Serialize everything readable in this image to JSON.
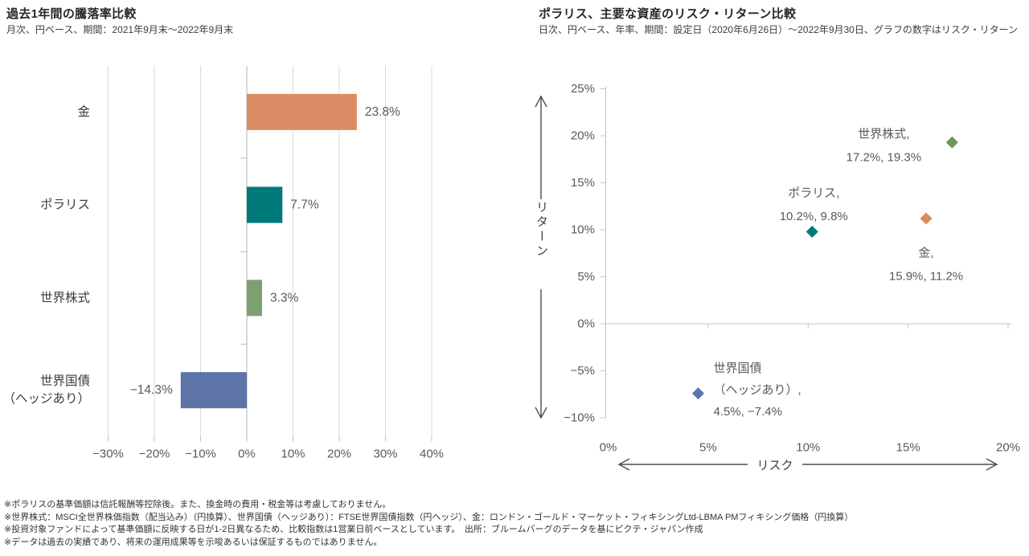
{
  "page": {
    "background": "#ffffff"
  },
  "chart_data": [
    {
      "type": "bar",
      "orientation": "horizontal",
      "title": "過去1年間の騰落率比較",
      "subtitle": "月次、円ベース、期間：2021年9月末～2022年9月末",
      "ids": [
        "gold",
        "polaris",
        "world-equity",
        "world-bond-hedged"
      ],
      "categories": [
        [
          "金"
        ],
        [
          "ポラリス"
        ],
        [
          "世界株式"
        ],
        [
          "世界国債",
          "（ヘッジあり）"
        ]
      ],
      "values": [
        23.8,
        7.7,
        3.3,
        -14.3
      ],
      "value_labels": [
        "23.8%",
        "7.7%",
        "3.3%",
        "−14.3%"
      ],
      "colors": [
        "#DC8C64",
        "#00797B",
        "#7E9F72",
        "#5C74A6"
      ],
      "xlim": [
        -30,
        40
      ],
      "xticks": [
        -30,
        -20,
        -10,
        0,
        10,
        20,
        30,
        40
      ],
      "xtick_labels": [
        "−30%",
        "−20%",
        "−10%",
        "0%",
        "10%",
        "20%",
        "30%",
        "40%"
      ],
      "grid": "vertical-gridlines-on",
      "xlabel": "",
      "ylabel": ""
    },
    {
      "type": "scatter",
      "title": "ポラリス、主要な資産のリスク・リターン比較",
      "subtitle": "日次、円ベース、年率、期間：設定日（2020年6月26日）～2022年9月30日、グラフの数字はリスク・リターン",
      "xlabel": "リスク",
      "ylabel": "リターン",
      "xlim": [
        0,
        20
      ],
      "ylim": [
        -10,
        25
      ],
      "xticks": [
        0,
        5,
        10,
        15,
        20
      ],
      "xtick_labels": [
        "0%",
        "5%",
        "10%",
        "15%",
        "20%"
      ],
      "yticks": [
        25,
        20,
        15,
        10,
        5,
        0,
        -5,
        -10
      ],
      "ytick_labels": [
        "25%",
        "20%",
        "15%",
        "10%",
        "5%",
        "0%",
        "−5%",
        "−10%"
      ],
      "grid": "zero-line-only",
      "marker": "diamond",
      "points": [
        {
          "id": "world-equity",
          "name": "世界株式",
          "risk": 17.2,
          "return": 19.3,
          "color": "#6E9657",
          "label_lines": [
            "世界株式,",
            "17.2%, 19.3%"
          ]
        },
        {
          "id": "polaris",
          "name": "ポラリス",
          "risk": 10.2,
          "return": 9.8,
          "color": "#00797B",
          "label_lines": [
            "ポラリス,",
            "10.2%, 9.8%"
          ]
        },
        {
          "id": "gold",
          "name": "金",
          "risk": 15.9,
          "return": 11.2,
          "color": "#DD8A5B",
          "label_lines": [
            "金,",
            "15.9%, 11.2%"
          ]
        },
        {
          "id": "world-bond-hedged",
          "name": "世界国債（ヘッジあり）",
          "risk": 4.5,
          "return": -7.4,
          "color": "#5B76AD",
          "label_lines": [
            "世界国債",
            "（ヘッジあり）,",
            "4.5%, −7.4%"
          ]
        }
      ]
    }
  ],
  "footnotes": {
    "lines": [
      "※ポラリスの基準価額は信託報酬等控除後。また、換金時の費用・税金等は考慮しておりません。",
      "※世界株式：MSCI全世界株価指数（配当込み）（円換算）、世界国債（ヘッジあり）：FTSE世界国債指数（円ヘッジ）、金：ロンドン・ゴールド・マーケット・フィキシングLtd-LBMA PMフィキシング価格（円換算）",
      "※投資対象ファンドによって基準価額に反映する日が1-2日異なるため、比較指数は1営業日前ベースとしています。　出所：ブルームバーグのデータを基にピクテ・ジャパン作成",
      "※データは過去の実績であり、将来の運用成果等を示唆あるいは保証するものではありません。"
    ]
  }
}
